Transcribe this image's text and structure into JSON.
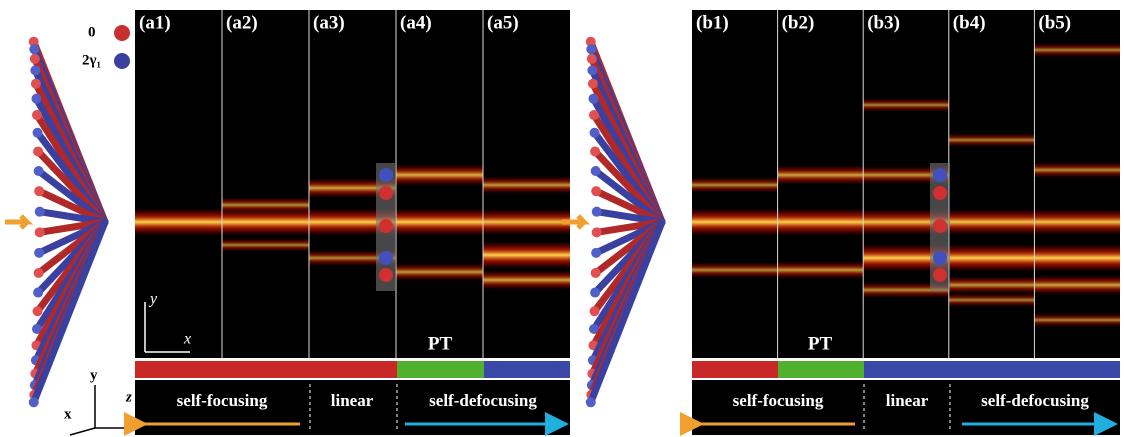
{
  "legend": {
    "red": "0",
    "blue": "2γ₁"
  },
  "panels": [
    {
      "columns": [
        "(a1)",
        "(a2)",
        "(a3)",
        "(a4)",
        "(a5)"
      ],
      "pt": "PT",
      "regimes": [
        "self-focusing",
        "linear",
        "self-defocusing"
      ],
      "inset_axes": {
        "y": "y",
        "x": "x"
      }
    },
    {
      "columns": [
        "(b1)",
        "(b2)",
        "(b3)",
        "(b4)",
        "(b5)"
      ],
      "pt": "PT",
      "regimes": [
        "self-focusing",
        "linear",
        "self-defocusing"
      ]
    }
  ],
  "axes3d": {
    "y": "y",
    "x": "x",
    "z": "z"
  }
}
